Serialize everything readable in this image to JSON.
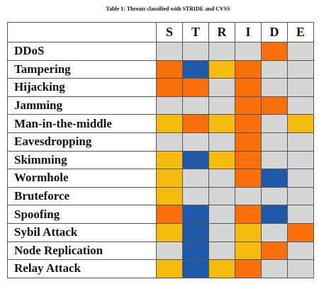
{
  "caption": "Table 1: Threats classified with STRIDE and CVSS",
  "columns": [
    "S",
    "T",
    "R",
    "I",
    "D",
    "E"
  ],
  "colors": {
    "none": "#d6d6d6",
    "yellow": "#f5bb0f",
    "orange": "#f76e0a",
    "blue": "#1f5aa8"
  },
  "rows": [
    {
      "threat": "DDoS",
      "ratings": [
        "none",
        "none",
        "none",
        "none",
        "orange",
        "none"
      ]
    },
    {
      "threat": "Tampering",
      "ratings": [
        "orange",
        "blue",
        "yellow",
        "orange",
        "none",
        "none"
      ]
    },
    {
      "threat": "Hijacking",
      "ratings": [
        "orange",
        "orange",
        "none",
        "orange",
        "none",
        "none"
      ]
    },
    {
      "threat": "Jamming",
      "ratings": [
        "none",
        "none",
        "none",
        "orange",
        "orange",
        "none"
      ]
    },
    {
      "threat": "Man-in-the-middle",
      "ratings": [
        "yellow",
        "orange",
        "yellow",
        "orange",
        "none",
        "yellow"
      ]
    },
    {
      "threat": "Eavesdropping",
      "ratings": [
        "none",
        "none",
        "none",
        "orange",
        "none",
        "none"
      ]
    },
    {
      "threat": "Skimming",
      "ratings": [
        "yellow",
        "blue",
        "yellow",
        "orange",
        "none",
        "none"
      ]
    },
    {
      "threat": "Wormhole",
      "ratings": [
        "yellow",
        "none",
        "none",
        "orange",
        "blue",
        "none"
      ]
    },
    {
      "threat": "Bruteforce",
      "ratings": [
        "yellow",
        "none",
        "none",
        "none",
        "none",
        "none"
      ]
    },
    {
      "threat": "Spoofing",
      "ratings": [
        "orange",
        "blue",
        "none",
        "orange",
        "blue",
        "none"
      ]
    },
    {
      "threat": "Sybil Attack",
      "ratings": [
        "yellow",
        "blue",
        "none",
        "yellow",
        "none",
        "orange"
      ]
    },
    {
      "threat": "Node Replication",
      "ratings": [
        "none",
        "blue",
        "none",
        "yellow",
        "orange",
        "none"
      ]
    },
    {
      "threat": "Relay Attack",
      "ratings": [
        "yellow",
        "blue",
        "yellow",
        "orange",
        "none",
        "none"
      ]
    }
  ]
}
